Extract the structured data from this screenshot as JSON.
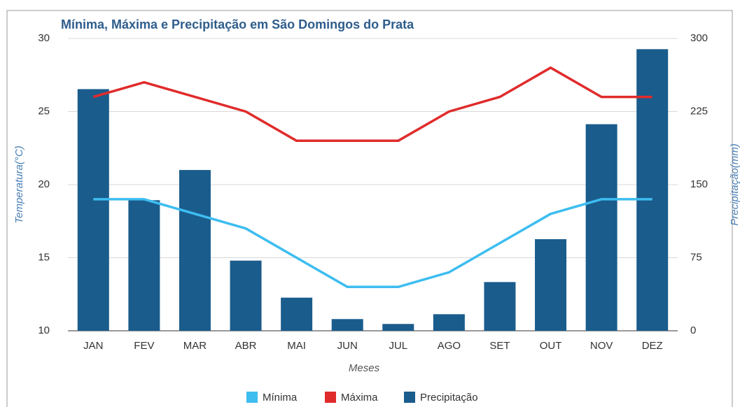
{
  "chart_data": {
    "type": "combo",
    "title": "Mínima, Máxima e Precipitação em São Domingos do Prata",
    "x_label": "Meses",
    "y_label": "Temperatura(°C)",
    "y2_label": "Precipitação(mm)",
    "categories": [
      "JAN",
      "FEV",
      "MAR",
      "ABR",
      "MAI",
      "JUN",
      "JUL",
      "AGO",
      "SET",
      "OUT",
      "NOV",
      "DEZ"
    ],
    "ylim": [
      10,
      30
    ],
    "yticks": [
      10,
      15,
      20,
      25,
      30
    ],
    "y2lim": [
      0,
      300
    ],
    "y2ticks": [
      0,
      75,
      150,
      225,
      300
    ],
    "grid": true,
    "legend": "bottom",
    "series": [
      {
        "name": "Mínima",
        "type": "line",
        "color": "#3dbdf0",
        "values": [
          19,
          19,
          18,
          17,
          15,
          13,
          13,
          14,
          16,
          18,
          19,
          19
        ]
      },
      {
        "name": "Máxima",
        "type": "line",
        "color": "#e02b2b",
        "values": [
          26,
          27,
          26,
          25,
          23,
          23,
          23,
          25,
          26,
          28,
          26,
          26
        ]
      },
      {
        "name": "Precipitação",
        "type": "bar",
        "axis": "y2",
        "color": "#1a5c8c",
        "values": [
          248,
          134,
          165,
          72,
          34,
          12,
          7,
          17,
          50,
          94,
          212,
          289
        ]
      }
    ]
  }
}
